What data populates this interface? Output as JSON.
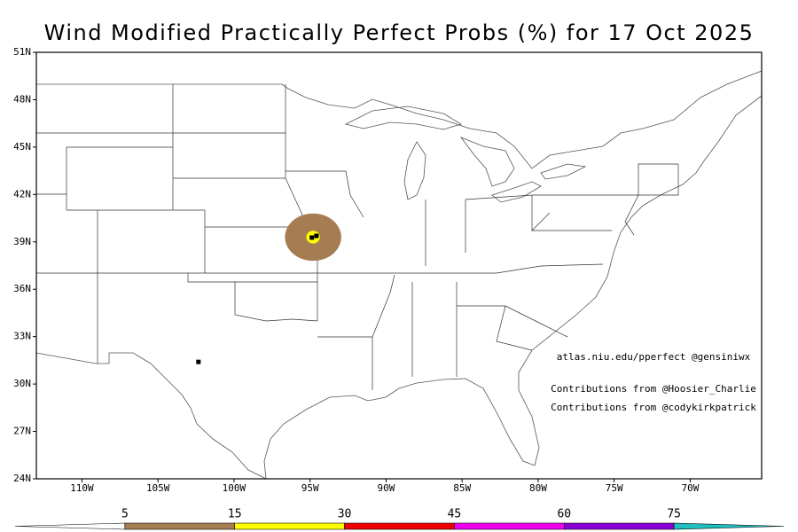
{
  "chart_data": {
    "type": "map",
    "title": "Wind Modified Practically Perfect Probs (%) for 17 Oct 2025",
    "xlim": [
      -113,
      -65.3
    ],
    "ylim": [
      24,
      51
    ],
    "xticks": [
      {
        "value": -110,
        "label": "110W"
      },
      {
        "value": -105,
        "label": "105W"
      },
      {
        "value": -100,
        "label": "100W"
      },
      {
        "value": -95,
        "label": "95W"
      },
      {
        "value": -90,
        "label": "90W"
      },
      {
        "value": -85,
        "label": "85W"
      },
      {
        "value": -80,
        "label": "80W"
      },
      {
        "value": -75,
        "label": "75W"
      },
      {
        "value": -70,
        "label": "70W"
      }
    ],
    "yticks": [
      {
        "value": 24,
        "label": "24N"
      },
      {
        "value": 27,
        "label": "27N"
      },
      {
        "value": 30,
        "label": "30N"
      },
      {
        "value": 33,
        "label": "33N"
      },
      {
        "value": 36,
        "label": "36N"
      },
      {
        "value": 39,
        "label": "39N"
      },
      {
        "value": 42,
        "label": "42N"
      },
      {
        "value": 45,
        "label": "45N"
      },
      {
        "value": 48,
        "label": "48N"
      },
      {
        "value": 51,
        "label": "51N"
      }
    ],
    "probability_areas": [
      {
        "level": 5,
        "lon": -94.8,
        "lat": 39.3,
        "rx": 1.85,
        "ry": 1.5,
        "color": "#a67c52"
      },
      {
        "level": 15,
        "lon": -94.8,
        "lat": 39.3,
        "rx": 0.45,
        "ry": 0.4,
        "color": "#ffff00"
      }
    ],
    "reports": {
      "lon": [
        -94.88,
        -94.58,
        -102.34
      ],
      "lat": [
        39.27,
        39.38,
        31.4
      ],
      "color": "#000000"
    },
    "annotations": [
      "atlas.niu.edu/pperfect @gensiniwx",
      "Contributions from @Hoosier_Charlie",
      "Contributions from @codykirkpatrick"
    ],
    "colorbar": {
      "levels": [
        5,
        15,
        30,
        45,
        60,
        75
      ],
      "colors": [
        "#ffffff",
        "#a67c52",
        "#ffff00",
        "#ee0000",
        "#ee00ee",
        "#8a00d4",
        "#20c0c0"
      ]
    }
  }
}
